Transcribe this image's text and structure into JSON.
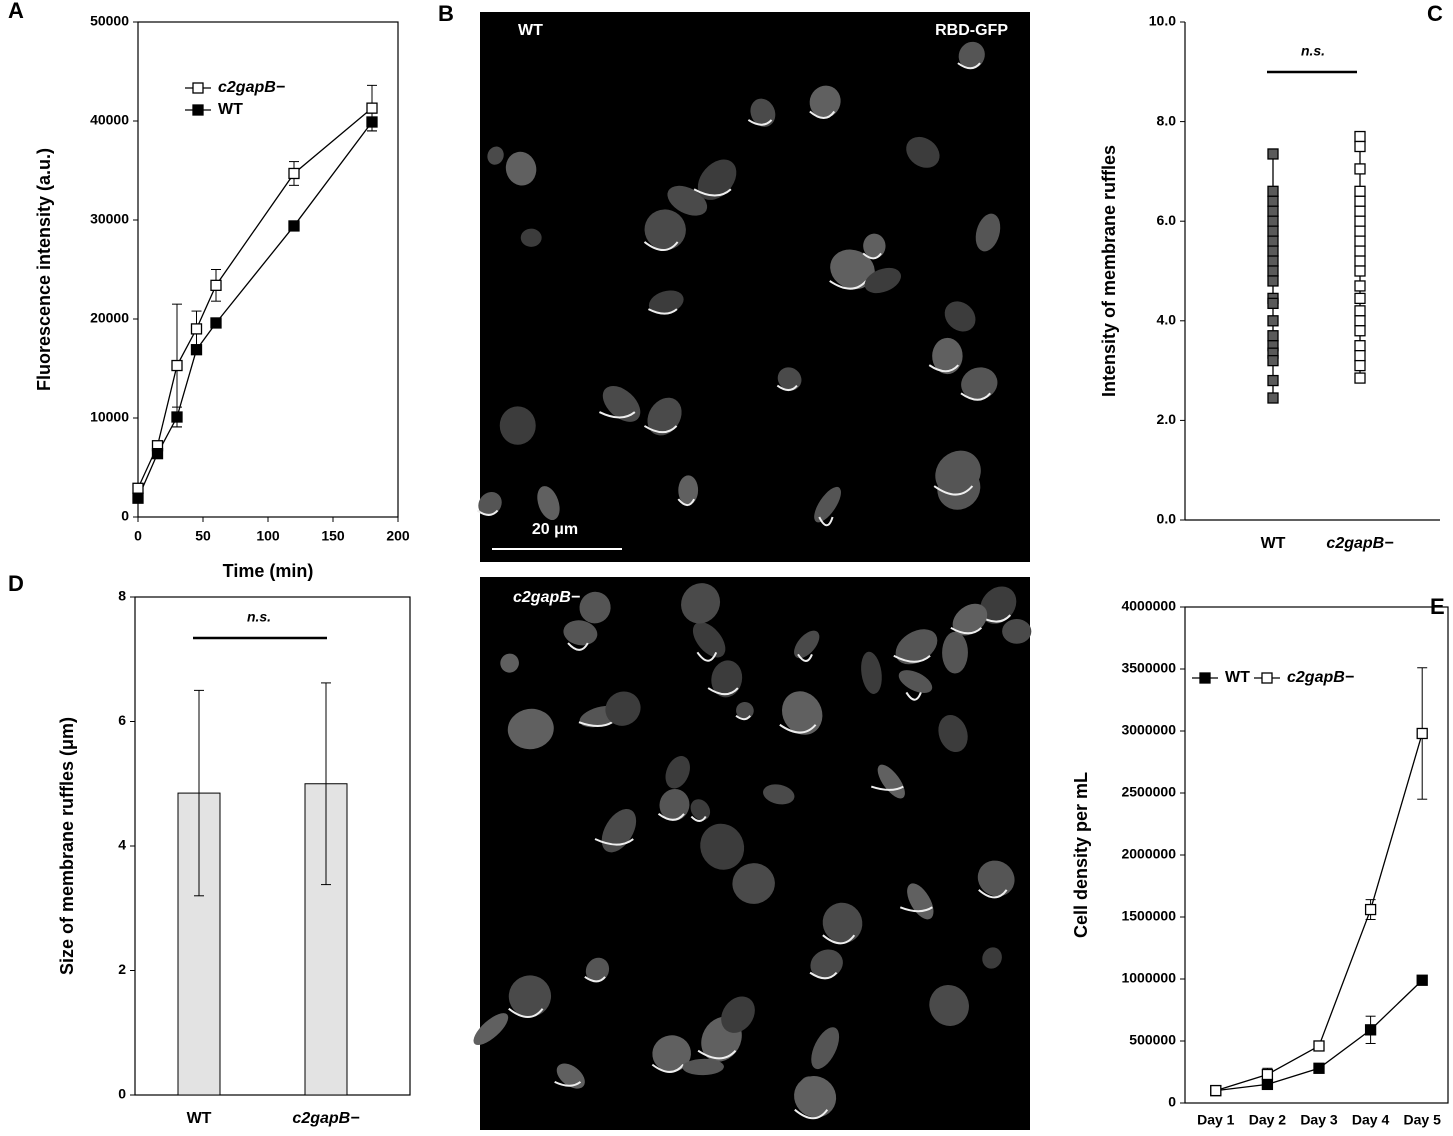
{
  "chart_data": [
    {
      "type": "line",
      "panel_label": "A",
      "x_label": "Time (min)",
      "y_label": "Fluorescence intensity (a.u.)",
      "x": [
        0,
        15,
        30,
        45,
        60,
        120,
        180
      ],
      "xlim": [
        0,
        200
      ],
      "xticks": [
        0,
        50,
        100,
        150,
        200
      ],
      "ylim": [
        0,
        50000
      ],
      "yticks": [
        0,
        10000,
        20000,
        30000,
        40000,
        50000
      ],
      "series": [
        {
          "name": "c2gapB−",
          "color": "#ffffff",
          "font_style": "italic",
          "values": [
            2900,
            7200,
            15300,
            19000,
            23400,
            34700,
            41300
          ],
          "errors": [
            300,
            400,
            6200,
            1800,
            1600,
            1200,
            2300
          ]
        },
        {
          "name": "WT",
          "color": "#000000",
          "font_style": "normal",
          "values": [
            1900,
            6400,
            10100,
            16900,
            19600,
            29400,
            39900
          ],
          "errors": [
            300,
            300,
            1000,
            400,
            300,
            300,
            900
          ]
        }
      ],
      "legend": "upper-left"
    },
    {
      "type": "strip",
      "panel_label": "C",
      "y_label": "Intensity of membrane ruffles",
      "annotation": "n.s.",
      "categories": [
        "WT",
        "c2gapB−"
      ],
      "colors": [
        "#5a5a5a",
        "#ffffff"
      ],
      "values": [
        [
          7.35,
          6.6,
          6.4,
          6.2,
          6.0,
          5.8,
          5.6,
          5.4,
          5.2,
          5.0,
          4.8,
          4.45,
          4.35,
          4.0,
          3.7,
          3.5,
          3.35,
          3.2,
          2.8,
          2.45
        ],
        [
          7.7,
          7.5,
          7.05,
          6.6,
          6.4,
          6.2,
          6.0,
          5.8,
          5.6,
          5.4,
          5.2,
          5.0,
          4.7,
          4.45,
          4.2,
          4.0,
          3.8,
          3.5,
          3.3,
          3.1,
          2.85
        ]
      ],
      "ylim": [
        0,
        10
      ],
      "yticks": [
        {
          "value": 0,
          "label": "0.0"
        },
        {
          "value": 2,
          "label": "2.0"
        },
        {
          "value": 4,
          "label": "4.0"
        },
        {
          "value": 6,
          "label": "6.0"
        },
        {
          "value": 8,
          "label": "8.0"
        },
        {
          "value": 10,
          "label": "10.0"
        }
      ]
    },
    {
      "type": "bar",
      "panel_label": "D",
      "y_label": "Size of membrane ruffles (μm)",
      "annotation": "n.s.",
      "categories": [
        "WT",
        "c2gapB−"
      ],
      "values": [
        4.85,
        5.0
      ],
      "errors": [
        1.65,
        1.62
      ],
      "color": "#e3e3e3",
      "ylim": [
        0,
        8
      ],
      "yticks": [
        0,
        2,
        4,
        6,
        8
      ]
    },
    {
      "type": "line",
      "panel_label": "E",
      "y_label": "Cell density per mL",
      "categories": [
        "Day 1",
        "Day 2",
        "Day 3",
        "Day 4",
        "Day 5"
      ],
      "ylim": [
        0,
        4000000
      ],
      "yticks": [
        0,
        500000,
        1000000,
        1500000,
        2000000,
        2500000,
        3000000,
        3500000,
        4000000
      ],
      "series": [
        {
          "name": "WT",
          "color": "#000000",
          "font_style": "normal",
          "values": [
            100000,
            150000,
            280000,
            590000,
            990000
          ],
          "errors": [
            10000,
            20000,
            20000,
            110000,
            20000
          ]
        },
        {
          "name": "c2gapB−",
          "color": "#ffffff",
          "font_style": "italic",
          "values": [
            100000,
            230000,
            460000,
            1560000,
            2980000
          ],
          "errors": [
            10000,
            50000,
            20000,
            80000,
            530000
          ]
        }
      ],
      "legend": "upper-left-horizontal"
    }
  ],
  "micrographs": {
    "panel_label": "B",
    "top_label": "WT",
    "top_channel": "RBD-GFP",
    "scale_bar": "20 μm",
    "bottom_label": "c2gapB−"
  }
}
